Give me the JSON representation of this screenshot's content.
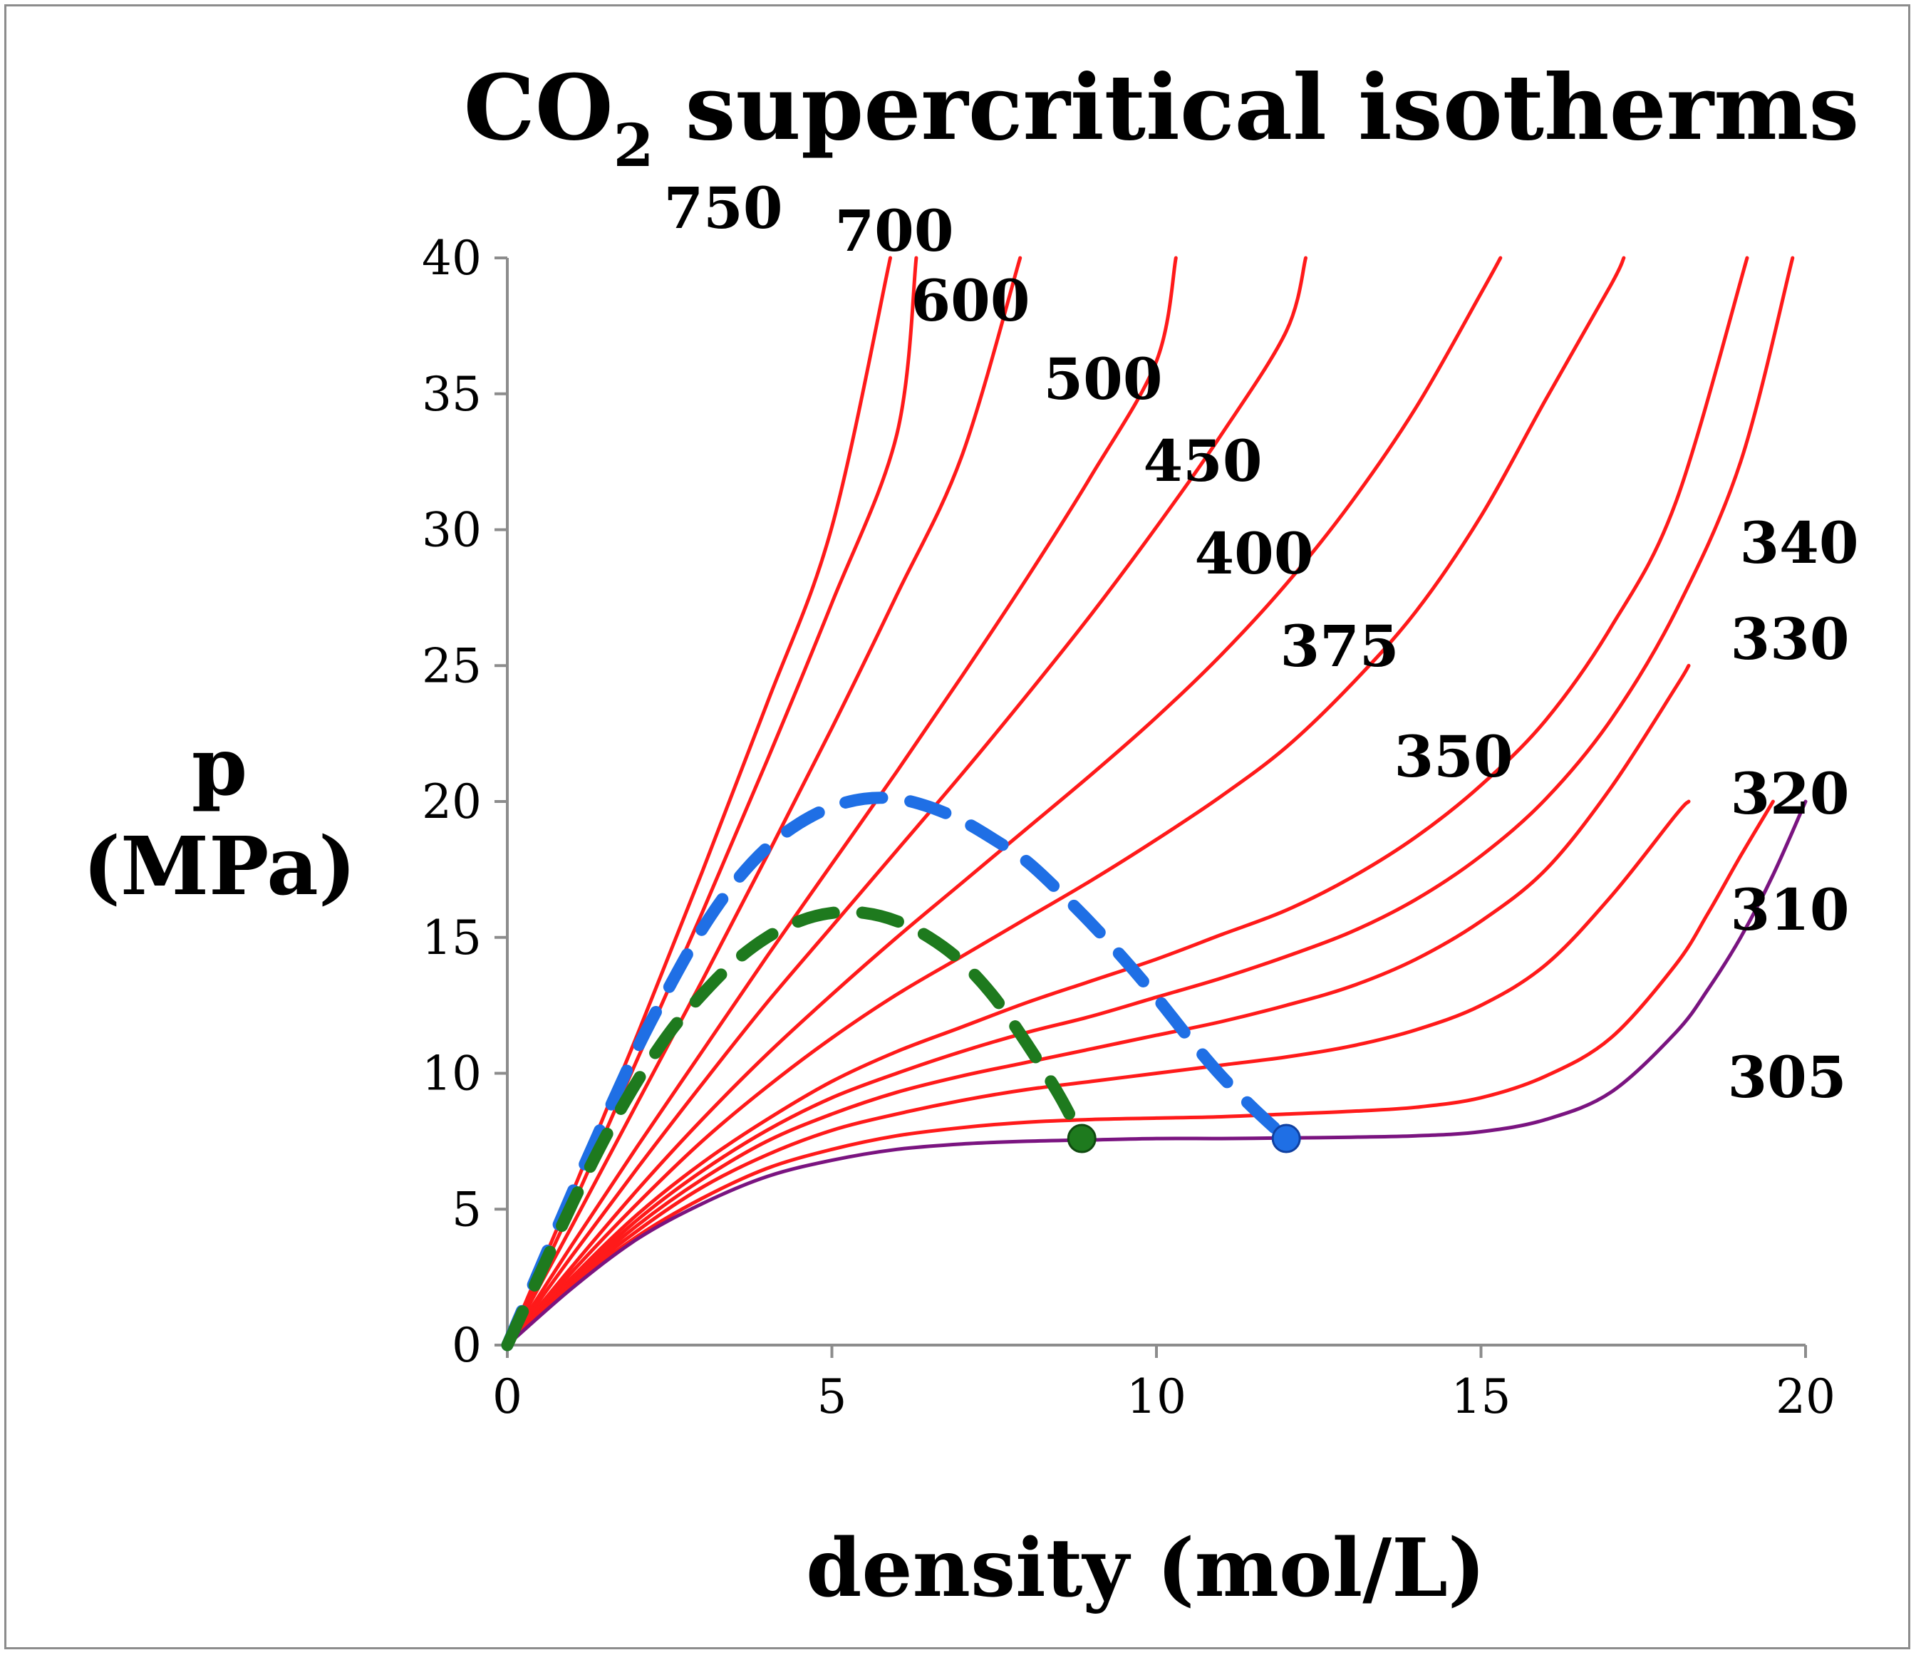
{
  "chart_data": {
    "type": "line",
    "title": {
      "main": "CO",
      "subscript": "2",
      "rest": " supercritical isotherms"
    },
    "xlabel": "density (mol/L)",
    "ylabel_line1": "p",
    "ylabel_line2": "(MPa)",
    "xlim": [
      0,
      20
    ],
    "ylim": [
      0,
      40
    ],
    "xticks": [
      0,
      5,
      10,
      15,
      20
    ],
    "yticks": [
      0,
      5,
      10,
      15,
      20,
      25,
      30,
      35,
      40
    ],
    "grid": false,
    "colors": {
      "isotherm": "#ff1a1a",
      "critical_isotherm": "#7a1480",
      "blue_dashed": "#1f6fe5",
      "green_dashed": "#1e7a1e",
      "axis": "#8c8c8c"
    },
    "series": [
      {
        "name": "305",
        "T": 305,
        "label": "305",
        "color": "#7a1480",
        "x": [
          0,
          1,
          2,
          3,
          4,
          5,
          6,
          7,
          8,
          9,
          10,
          11,
          12,
          13,
          14,
          15,
          16,
          17,
          18,
          18.5,
          19,
          19.5,
          20
        ],
        "y": [
          0,
          2.1,
          3.9,
          5.2,
          6.2,
          6.8,
          7.2,
          7.4,
          7.5,
          7.55,
          7.6,
          7.6,
          7.62,
          7.65,
          7.7,
          7.85,
          8.3,
          9.3,
          11.5,
          13.1,
          15.0,
          17.3,
          20.0
        ]
      },
      {
        "name": "310",
        "T": 310,
        "label": "310",
        "color": "#ff1a1a",
        "x": [
          0,
          1,
          2,
          3,
          4,
          5,
          6,
          7,
          8,
          9,
          10,
          11,
          12,
          13,
          14,
          15,
          16,
          17,
          18,
          18.5,
          19,
          19.5
        ],
        "y": [
          0,
          2.2,
          4.0,
          5.4,
          6.5,
          7.2,
          7.7,
          8.0,
          8.2,
          8.3,
          8.35,
          8.4,
          8.5,
          8.6,
          8.75,
          9.1,
          9.9,
          11.3,
          14.0,
          15.9,
          18.0,
          20.0
        ]
      },
      {
        "name": "320",
        "T": 320,
        "label": "320",
        "color": "#ff1a1a",
        "x": [
          0,
          1,
          2,
          3,
          4,
          5,
          6,
          7,
          8,
          9,
          10,
          11,
          12,
          13,
          14,
          15,
          16,
          17,
          18,
          18.2
        ],
        "y": [
          0,
          2.3,
          4.2,
          5.8,
          7.0,
          7.9,
          8.5,
          9.0,
          9.4,
          9.7,
          10.0,
          10.3,
          10.6,
          11.0,
          11.6,
          12.5,
          14.0,
          16.5,
          19.5,
          20.0
        ]
      },
      {
        "name": "330",
        "T": 330,
        "label": "330",
        "color": "#ff1a1a",
        "x": [
          0,
          1,
          2,
          3,
          4,
          5,
          6,
          7,
          8,
          9,
          10,
          11,
          12,
          13,
          14,
          15,
          16,
          17,
          18,
          18.2
        ],
        "y": [
          0,
          2.35,
          4.4,
          6.1,
          7.5,
          8.5,
          9.3,
          9.9,
          10.4,
          10.9,
          11.4,
          11.9,
          12.5,
          13.2,
          14.2,
          15.6,
          17.5,
          20.5,
          24.2,
          25.0
        ]
      },
      {
        "name": "340",
        "T": 340,
        "label": "340",
        "color": "#ff1a1a",
        "x": [
          0,
          1,
          2,
          3,
          4,
          5,
          6,
          7,
          8,
          9,
          10,
          11,
          12,
          13,
          14,
          15,
          16,
          17,
          18,
          19,
          19.8
        ],
        "y": [
          0,
          2.4,
          4.6,
          6.4,
          7.9,
          9.1,
          10.0,
          10.8,
          11.5,
          12.1,
          12.8,
          13.5,
          14.3,
          15.2,
          16.4,
          18.0,
          20.1,
          23.0,
          27.0,
          32.5,
          40.0
        ]
      },
      {
        "name": "350",
        "T": 350,
        "label": "350",
        "color": "#ff1a1a",
        "x": [
          0,
          1,
          2,
          3,
          4,
          5,
          6,
          7,
          8,
          9,
          10,
          11,
          12,
          13,
          14,
          15,
          16,
          17,
          18,
          19.1
        ],
        "y": [
          0,
          2.5,
          4.8,
          6.7,
          8.3,
          9.7,
          10.8,
          11.7,
          12.6,
          13.4,
          14.2,
          15.1,
          16.0,
          17.2,
          18.7,
          20.6,
          23.0,
          26.4,
          31.0,
          40.0
        ]
      },
      {
        "name": "375",
        "T": 375,
        "label": "375",
        "color": "#ff1a1a",
        "x": [
          0,
          1,
          2,
          3,
          4,
          5,
          6,
          7,
          8,
          9,
          10,
          11,
          12,
          13,
          14,
          15,
          16,
          17,
          17.2
        ],
        "y": [
          0,
          2.7,
          5.2,
          7.5,
          9.5,
          11.3,
          12.9,
          14.3,
          15.7,
          17.1,
          18.6,
          20.2,
          22.0,
          24.3,
          27.0,
          30.5,
          34.8,
          39.0,
          40.0
        ]
      },
      {
        "name": "400",
        "T": 400,
        "label": "400",
        "color": "#ff1a1a",
        "x": [
          0,
          1,
          2,
          3,
          4,
          5,
          6,
          7,
          8,
          9,
          10,
          11,
          12,
          13,
          14,
          15,
          15.3
        ],
        "y": [
          0,
          2.9,
          5.7,
          8.3,
          10.7,
          12.9,
          15.0,
          17.0,
          19.0,
          21.0,
          23.1,
          25.4,
          28.0,
          31.0,
          34.5,
          38.7,
          40.0
        ]
      },
      {
        "name": "450",
        "T": 450,
        "label": "450",
        "color": "#ff1a1a",
        "x": [
          0,
          1,
          2,
          3,
          4,
          5,
          6,
          7,
          8,
          9,
          10,
          11,
          12,
          12.3
        ],
        "y": [
          0,
          3.3,
          6.5,
          9.6,
          12.6,
          15.4,
          18.2,
          21.0,
          23.9,
          26.9,
          30.1,
          33.5,
          37.3,
          40.0
        ]
      },
      {
        "name": "500",
        "T": 500,
        "label": "500",
        "color": "#ff1a1a",
        "x": [
          0,
          1,
          2,
          3,
          4,
          5,
          6,
          7,
          8,
          9,
          10,
          10.3
        ],
        "y": [
          0,
          3.7,
          7.3,
          10.8,
          14.3,
          17.7,
          21.1,
          24.6,
          28.2,
          32.0,
          36.2,
          40.0
        ]
      },
      {
        "name": "600",
        "T": 600,
        "label": "600",
        "color": "#ff1a1a",
        "x": [
          0,
          1,
          2,
          3,
          4,
          5,
          6,
          7,
          7.9
        ],
        "y": [
          0,
          4.4,
          8.9,
          13.4,
          18.0,
          22.7,
          27.6,
          32.7,
          40.0
        ]
      },
      {
        "name": "700",
        "T": 700,
        "label": "700",
        "color": "#ff1a1a",
        "x": [
          0,
          1,
          2,
          3,
          4,
          5,
          6,
          6.3
        ],
        "y": [
          0,
          5.1,
          10.5,
          15.9,
          21.5,
          27.3,
          33.5,
          40.0
        ]
      },
      {
        "name": "750",
        "T": 750,
        "label": "750",
        "color": "#ff1a1a",
        "x": [
          0,
          1,
          2,
          3,
          4,
          5,
          5.9
        ],
        "y": [
          0,
          5.6,
          11.4,
          17.4,
          23.6,
          30.1,
          40.0
        ]
      }
    ],
    "dashed_series": [
      {
        "name": "blue-dashed",
        "color": "#1f6fe5",
        "x": [
          0,
          0.5,
          1,
          1.5,
          2,
          2.5,
          3,
          3.5,
          4,
          4.5,
          5,
          5.5,
          6,
          6.5,
          7,
          7.5,
          8,
          8.5,
          9,
          9.5,
          10,
          10.5,
          11,
          11.5,
          12
        ],
        "y": [
          0,
          2.8,
          5.6,
          8.3,
          10.9,
          13.2,
          15.3,
          17.0,
          18.3,
          19.2,
          19.8,
          20.1,
          20.1,
          19.8,
          19.3,
          18.6,
          17.8,
          16.7,
          15.5,
          14.2,
          12.8,
          11.3,
          9.9,
          8.7,
          7.6
        ],
        "endpoint": [
          12.0,
          7.6
        ]
      },
      {
        "name": "green-dashed",
        "color": "#1e7a1e",
        "x": [
          0,
          0.5,
          1,
          1.5,
          2,
          2.5,
          3,
          3.5,
          4,
          4.5,
          5,
          5.5,
          6,
          6.5,
          7,
          7.5,
          8,
          8.5,
          8.85
        ],
        "y": [
          0,
          2.6,
          5.2,
          7.6,
          9.7,
          11.5,
          12.9,
          14.1,
          15.0,
          15.6,
          15.9,
          15.9,
          15.6,
          15.0,
          14.1,
          12.8,
          11.1,
          9.2,
          7.6
        ],
        "endpoint": [
          8.85,
          7.6
        ]
      }
    ]
  }
}
